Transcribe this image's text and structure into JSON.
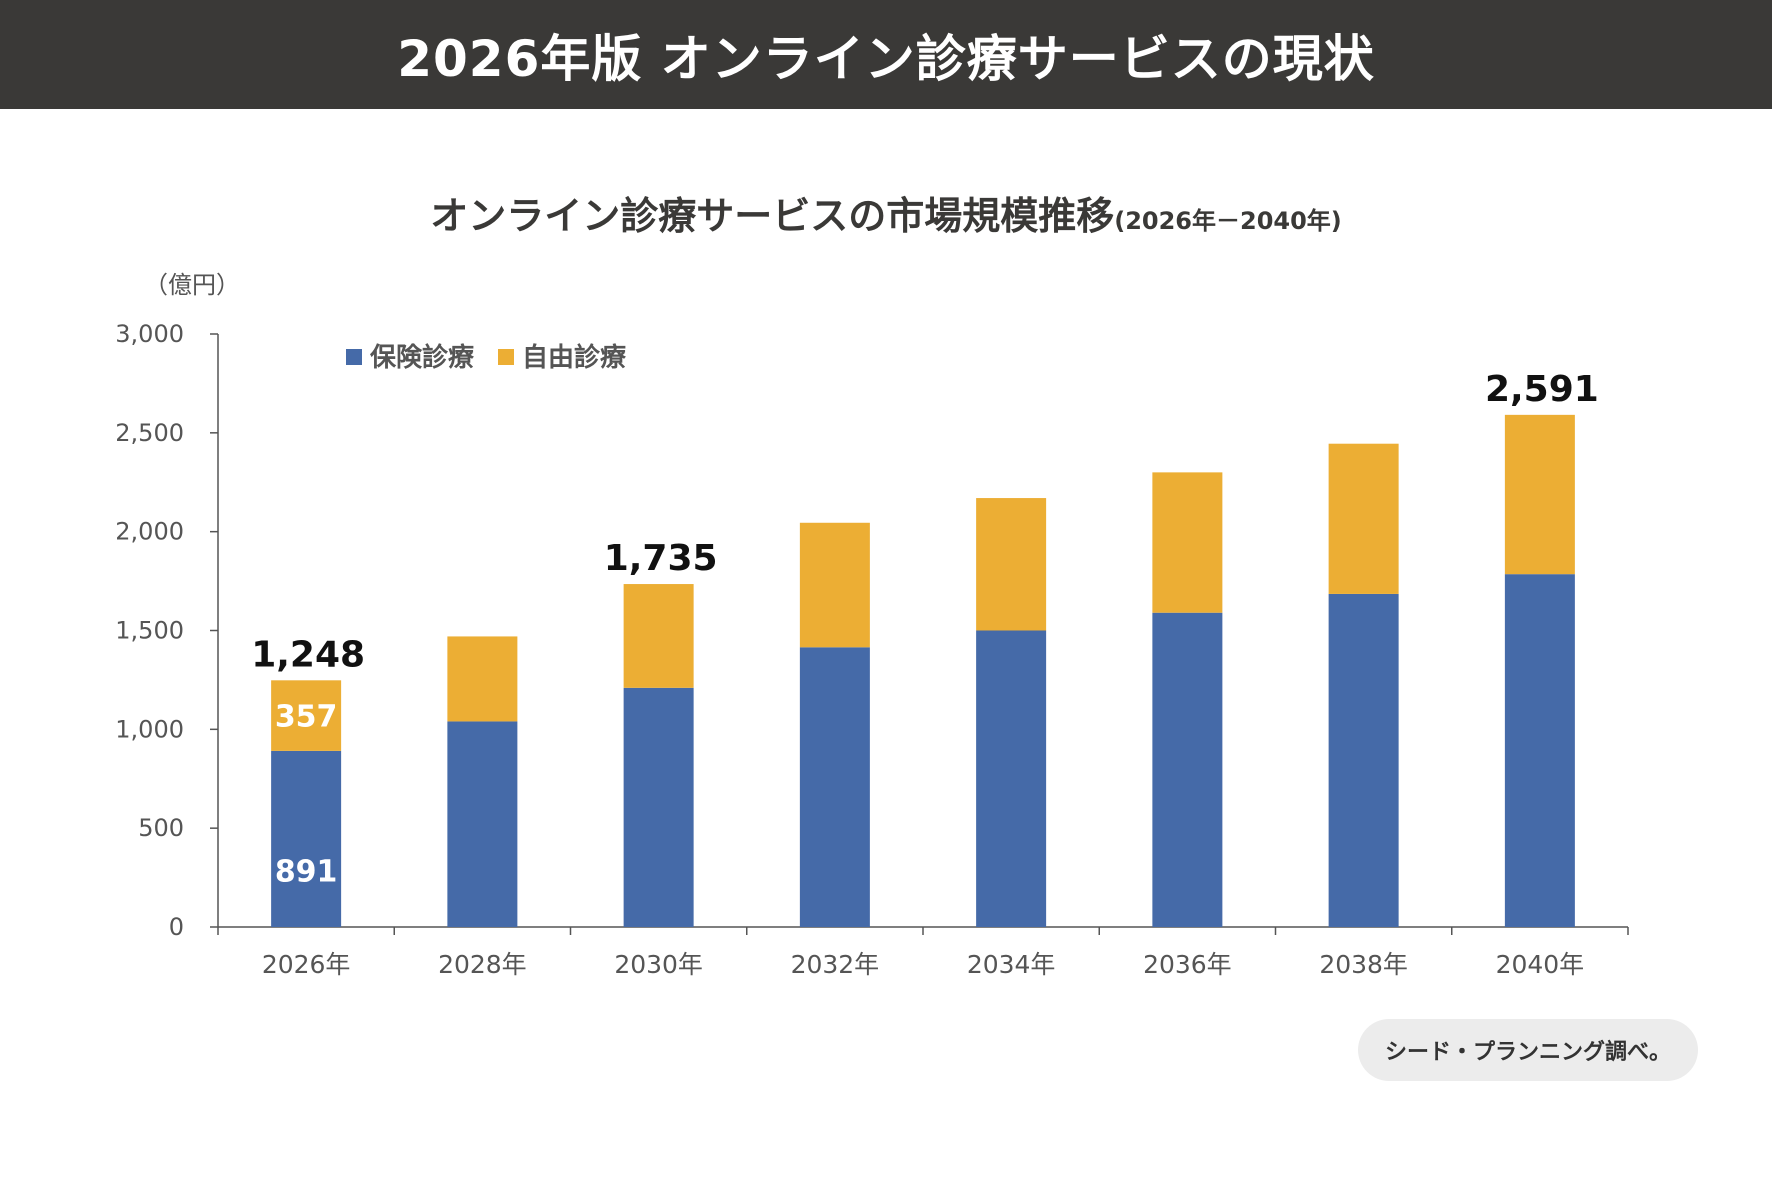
{
  "header": {
    "title": "2026年版 オンライン診療サービスの現状"
  },
  "chart_data": {
    "type": "bar",
    "stacked": true,
    "title": "オンライン診療サービスの市場規模推移",
    "subtitle": "(2026年－2040年)",
    "ylabel": "（億円）",
    "xlabel": "",
    "ylim": [
      0,
      3000
    ],
    "yticks": [
      0,
      500,
      1000,
      1500,
      2000,
      2500,
      3000
    ],
    "ytick_labels": [
      "0",
      "500",
      "1,000",
      "1,500",
      "2,000",
      "2,500",
      "3,000"
    ],
    "categories": [
      "2026年",
      "2028年",
      "2030年",
      "2032年",
      "2034年",
      "2036年",
      "2038年",
      "2040年"
    ],
    "series": [
      {
        "name": "保険診療",
        "color": "#456aa8",
        "values": [
          891,
          1040,
          1210,
          1415,
          1500,
          1590,
          1685,
          1785
        ]
      },
      {
        "name": "自由診療",
        "color": "#ecae34",
        "values": [
          357,
          430,
          525,
          630,
          670,
          710,
          760,
          806
        ]
      }
    ],
    "total_labels": [
      {
        "index": 0,
        "text": "1,248"
      },
      {
        "index": 2,
        "text": "1,735"
      },
      {
        "index": 7,
        "text": "2,591"
      }
    ],
    "segment_labels": [
      {
        "index": 0,
        "series": 0,
        "text": "891"
      },
      {
        "index": 0,
        "series": 1,
        "text": "357"
      }
    ],
    "legend_position": "top-left"
  },
  "source": {
    "text": "シード・プランニング調べ。"
  }
}
